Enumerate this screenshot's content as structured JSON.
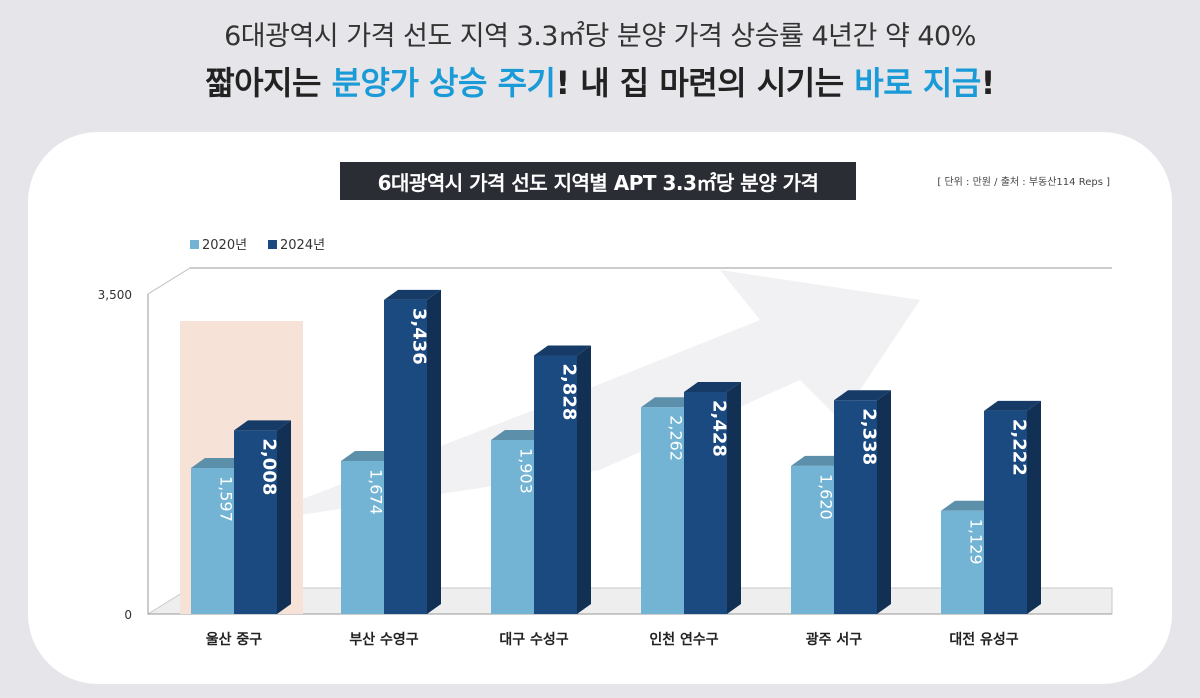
{
  "header": {
    "line1": "6대광역시 가격 선도 지역 3.3㎡당 분양 가격 상승률 4년간 약 40%",
    "line2_a": "짧아지는 ",
    "line2_b": "분양가 상승 주기",
    "line2_c": "! 내 집 마련의 시기는 ",
    "line2_d": "바로 지금",
    "line2_e": "!"
  },
  "source_note": "[ 단위 : 만원 / 출처 : 부동산114 Reps ]",
  "colors": {
    "series_2020": "#73b3d4",
    "series_2024": "#1b4a80",
    "highlight": "#f6e2d6",
    "accent": "#1a9ad6"
  },
  "chart_data": {
    "type": "bar",
    "title": "6대광역시 가격 선도 지역별 APT 3.3㎡당 분양 가격",
    "categories": [
      "울산 중구",
      "부산 수영구",
      "대구 수성구",
      "인천 연수구",
      "광주 서구",
      "대전 유성구"
    ],
    "series": [
      {
        "name": "2020년",
        "values": [
          1597,
          1674,
          1903,
          2262,
          1620,
          1129
        ],
        "labels": [
          "1,597",
          "1,674",
          "1,903",
          "2,262",
          "1,620",
          "1,129"
        ]
      },
      {
        "name": "2024년",
        "values": [
          2008,
          3436,
          2828,
          2428,
          2338,
          2222
        ],
        "labels": [
          "2,008",
          "3,436",
          "2,828",
          "2,428",
          "2,338",
          "2,222"
        ]
      }
    ],
    "y_ticks": [
      "0",
      "3,500"
    ],
    "ylim": [
      0,
      3500
    ],
    "legend": "top-left",
    "highlighted_category": "울산 중구",
    "style": "3d-bar"
  }
}
